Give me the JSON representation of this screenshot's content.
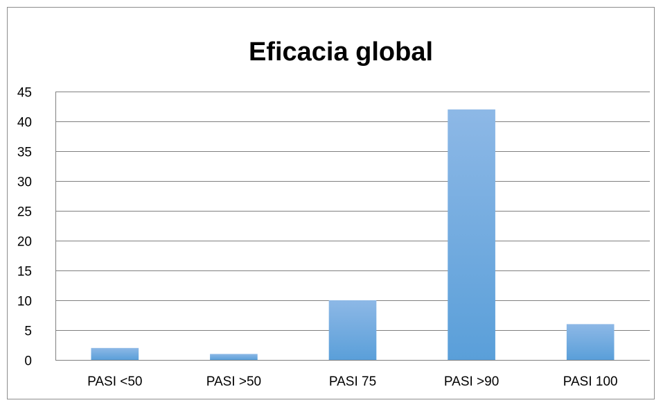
{
  "chart_data": {
    "type": "bar",
    "title": "Eficacia global",
    "xlabel": "",
    "ylabel": "",
    "categories": [
      "PASI <50",
      "PASI >50",
      "PASI 75",
      "PASI >90",
      "PASI 100"
    ],
    "values": [
      2,
      1,
      10,
      42,
      6
    ],
    "ylim": [
      0,
      45
    ],
    "yticks": [
      0,
      5,
      10,
      15,
      20,
      25,
      30,
      35,
      40,
      45
    ],
    "grid": true,
    "legend": "none",
    "colors": {
      "bar_top": "#8db8e6",
      "bar_bottom": "#5a9fd9",
      "grid": "#7f7f7f"
    }
  }
}
